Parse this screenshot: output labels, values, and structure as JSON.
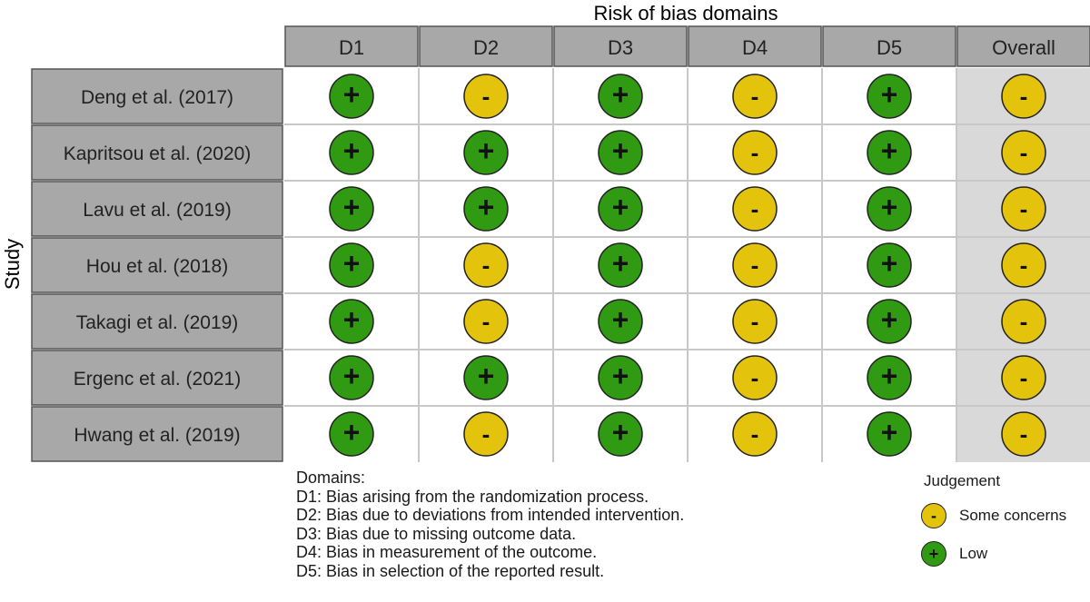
{
  "chart_data": {
    "type": "heatmap",
    "title": "Risk of bias domains",
    "ylabel": "Study",
    "columns": [
      "D1",
      "D2",
      "D3",
      "D4",
      "D5",
      "Overall"
    ],
    "studies": [
      {
        "name": "Deng et al. (2017)",
        "judgements": [
          "Low",
          "Some concerns",
          "Low",
          "Some concerns",
          "Low",
          "Some concerns"
        ]
      },
      {
        "name": "Kapritsou et al. (2020)",
        "judgements": [
          "Low",
          "Low",
          "Low",
          "Some concerns",
          "Low",
          "Some concerns"
        ]
      },
      {
        "name": "Lavu et al. (2019)",
        "judgements": [
          "Low",
          "Low",
          "Low",
          "Some concerns",
          "Low",
          "Some concerns"
        ]
      },
      {
        "name": "Hou et al. (2018)",
        "judgements": [
          "Low",
          "Some concerns",
          "Low",
          "Some concerns",
          "Low",
          "Some concerns"
        ]
      },
      {
        "name": "Takagi et al. (2019)",
        "judgements": [
          "Low",
          "Some concerns",
          "Low",
          "Some concerns",
          "Low",
          "Some concerns"
        ]
      },
      {
        "name": "Ergenc et al. (2021)",
        "judgements": [
          "Low",
          "Low",
          "Low",
          "Some concerns",
          "Low",
          "Some concerns"
        ]
      },
      {
        "name": "Hwang et al. (2019)",
        "judgements": [
          "Low",
          "Some concerns",
          "Low",
          "Some concerns",
          "Low",
          "Some concerns"
        ]
      }
    ],
    "legend": {
      "title": "Judgement",
      "items": [
        {
          "label": "Some concerns",
          "symbol": "-",
          "color": "#e3c30b"
        },
        {
          "label": "Low",
          "symbol": "+",
          "color": "#2f9a12"
        }
      ]
    }
  },
  "domains": {
    "title": "Domains:",
    "items": [
      "D1: Bias arising from the randomization process.",
      "D2: Bias due to deviations from intended intervention.",
      "D3: Bias due to missing outcome data.",
      "D4: Bias in measurement of the outcome.",
      "D5: Bias in selection of the reported result."
    ]
  },
  "colors": {
    "header_fill": "#a8a8a8",
    "study_fill": "#a8a8a8",
    "overall_fill": "#d9d9d9",
    "cell_fill": "#ffffff",
    "grid": "#c8c8c8",
    "border": "#555555"
  }
}
